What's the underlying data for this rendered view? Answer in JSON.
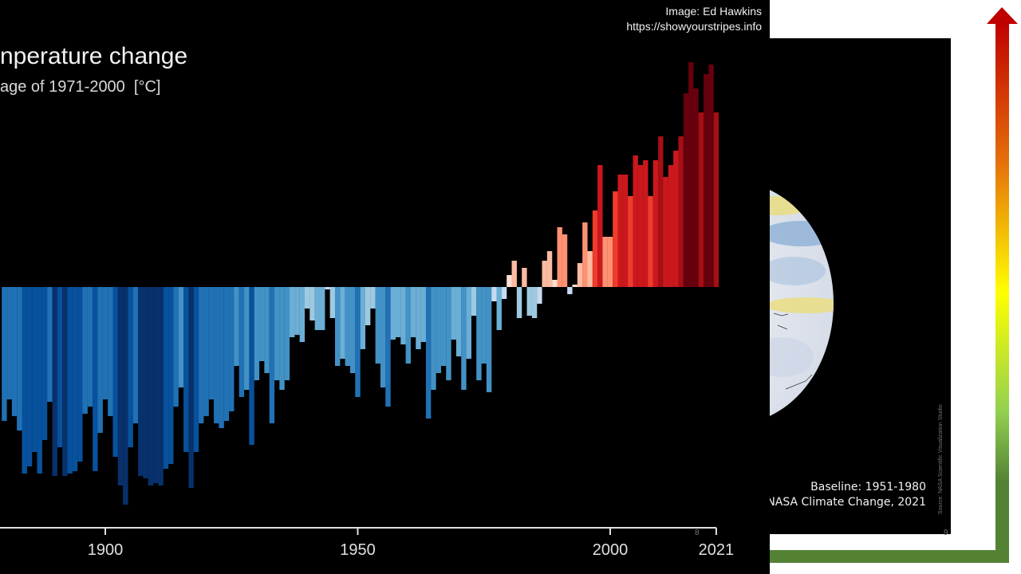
{
  "header": {
    "title": "nperature change",
    "subtitle": "age of 1971-2000  [°C]",
    "credit_line1": "Image: Ed Hawkins",
    "credit_line2": "https://showyourstripes.info"
  },
  "right_panel": {
    "baseline": "Baseline: 1951-1980",
    "source": "NASA Climate Change, 2021",
    "vertical_source": "Source: NASA Scientific Visualization Studio",
    "page_number": "9"
  },
  "left_page_number": "8",
  "arrow": {
    "gradient_colors": [
      "#c00000",
      "#e46c0a",
      "#ffff00",
      "#92d050",
      "#548235"
    ]
  },
  "chart_data": {
    "type": "bar",
    "title": "",
    "xlabel": "",
    "ylabel": "",
    "xlim": [
      1880,
      2021
    ],
    "grid": false,
    "x_ticks": [
      "1900",
      "1950",
      "2000",
      "2021"
    ],
    "palette": {
      "cold": [
        "#08306b",
        "#08519c",
        "#2171b5",
        "#4292c6",
        "#6baed6",
        "#9ecae1",
        "#c6dbef"
      ],
      "warm": [
        "#fee0d2",
        "#fcbba1",
        "#fc9272",
        "#ef3b2c",
        "#cb181d",
        "#a50f15",
        "#67000d"
      ]
    },
    "x": [
      1880,
      1881,
      1882,
      1883,
      1884,
      1885,
      1886,
      1887,
      1888,
      1889,
      1890,
      1891,
      1892,
      1893,
      1894,
      1895,
      1896,
      1897,
      1898,
      1899,
      1900,
      1901,
      1902,
      1903,
      1904,
      1905,
      1906,
      1907,
      1908,
      1909,
      1910,
      1911,
      1912,
      1913,
      1914,
      1915,
      1916,
      1917,
      1918,
      1919,
      1920,
      1921,
      1922,
      1923,
      1924,
      1925,
      1926,
      1927,
      1928,
      1929,
      1930,
      1931,
      1932,
      1933,
      1934,
      1935,
      1936,
      1937,
      1938,
      1939,
      1940,
      1941,
      1942,
      1943,
      1944,
      1945,
      1946,
      1947,
      1948,
      1949,
      1950,
      1951,
      1952,
      1953,
      1954,
      1955,
      1956,
      1957,
      1958,
      1959,
      1960,
      1961,
      1962,
      1963,
      1964,
      1965,
      1966,
      1967,
      1968,
      1969,
      1970,
      1971,
      1972,
      1973,
      1974,
      1975,
      1976,
      1977,
      1978,
      1979,
      1980,
      1981,
      1982,
      1983,
      1984,
      1985,
      1986,
      1987,
      1988,
      1989,
      1990,
      1991,
      1992,
      1993,
      1994,
      1995,
      1996,
      1997,
      1998,
      1999,
      2000,
      2001,
      2002,
      2003,
      2004,
      2005,
      2006,
      2007,
      2008,
      2009,
      2010,
      2011,
      2012,
      2013,
      2014,
      2015,
      2016,
      2017,
      2018,
      2019,
      2020,
      2021
    ],
    "values": [
      -0.56,
      -0.47,
      -0.54,
      -0.6,
      -0.78,
      -0.75,
      -0.69,
      -0.78,
      -0.64,
      -0.48,
      -0.79,
      -0.67,
      -0.79,
      -0.78,
      -0.77,
      -0.73,
      -0.53,
      -0.5,
      -0.77,
      -0.61,
      -0.47,
      -0.54,
      -0.71,
      -0.83,
      -0.91,
      -0.67,
      -0.57,
      -0.79,
      -0.8,
      -0.83,
      -0.82,
      -0.83,
      -0.76,
      -0.74,
      -0.5,
      -0.42,
      -0.69,
      -0.84,
      -0.69,
      -0.57,
      -0.54,
      -0.47,
      -0.57,
      -0.59,
      -0.56,
      -0.52,
      -0.33,
      -0.46,
      -0.43,
      -0.66,
      -0.39,
      -0.31,
      -0.36,
      -0.57,
      -0.39,
      -0.43,
      -0.39,
      -0.21,
      -0.2,
      -0.23,
      -0.09,
      -0.14,
      -0.18,
      -0.18,
      -0.01,
      -0.13,
      -0.33,
      -0.3,
      -0.33,
      -0.36,
      -0.46,
      -0.26,
      -0.16,
      -0.09,
      -0.32,
      -0.42,
      -0.5,
      -0.22,
      -0.21,
      -0.24,
      -0.32,
      -0.21,
      -0.26,
      -0.23,
      -0.55,
      -0.43,
      -0.36,
      -0.33,
      -0.39,
      -0.22,
      -0.29,
      -0.43,
      -0.3,
      -0.12,
      -0.39,
      -0.32,
      -0.44,
      -0.06,
      -0.18,
      -0.05,
      0.05,
      0.11,
      -0.13,
      0.08,
      -0.12,
      -0.13,
      -0.07,
      0.11,
      0.15,
      0.03,
      0.25,
      0.22,
      -0.03,
      0.01,
      0.1,
      0.27,
      0.15,
      0.32,
      0.51,
      0.21,
      0.21,
      0.4,
      0.47,
      0.47,
      0.38,
      0.55,
      0.51,
      0.53,
      0.38,
      0.53,
      0.63,
      0.46,
      0.51,
      0.57,
      0.63,
      0.81,
      0.94,
      0.83,
      0.73,
      0.89,
      0.93,
      0.73
    ]
  }
}
